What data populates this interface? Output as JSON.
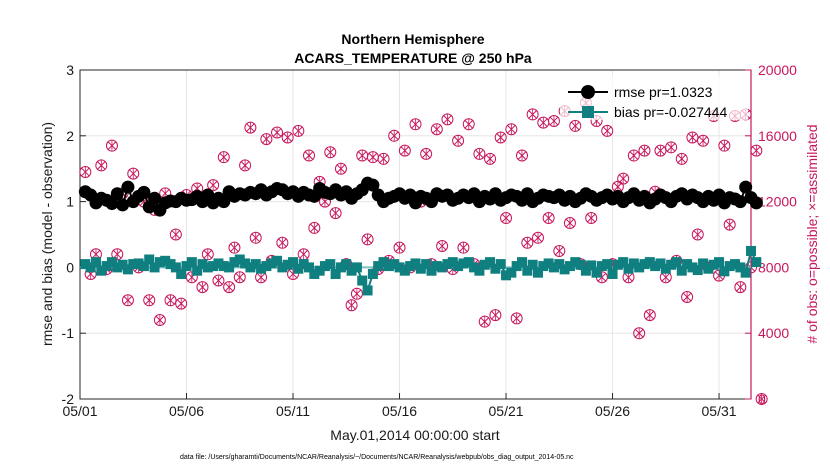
{
  "chart_data": {
    "type": "line",
    "title": "Northern Hemisphere",
    "subtitle": "ACARS_TEMPERATURE @ 250 hPa",
    "xlabel": "May.01,2014 00:00:00 start",
    "ylabel": "rmse and bias (model - observation)",
    "ylabel_right": "# of obs: o=possible; ×=assimilated",
    "footnote": "data file: /Users/gharamti/Documents/NCAR/Reanalysis/~/Documents/NCAR/Reanalysis/webpub/obs_diag_output_2014-05.nc",
    "x_range": [
      0,
      31.5
    ],
    "ylim": [
      -2,
      3
    ],
    "ylim_right": [
      0,
      20000
    ],
    "x_ticks": [
      {
        "x": 0,
        "label": "05/01"
      },
      {
        "x": 5,
        "label": "05/06"
      },
      {
        "x": 10,
        "label": "05/11"
      },
      {
        "x": 15,
        "label": "05/16"
      },
      {
        "x": 20,
        "label": "05/21"
      },
      {
        "x": 25,
        "label": "05/26"
      },
      {
        "x": 30,
        "label": "05/31"
      }
    ],
    "y_ticks": [
      "-2",
      "-1",
      "0",
      "1",
      "2",
      "3"
    ],
    "y_ticks_right": [
      "0",
      "4000",
      "8000",
      "12000",
      "16000",
      "20000"
    ],
    "grid": true,
    "legend_position": "top-right",
    "colors": {
      "rmse": "#000000",
      "bias": "#0f7f80",
      "obs": "#c8175d",
      "zero_line": "#7fbfbf"
    },
    "legend": [
      {
        "series": "rmse",
        "label": "rmse pr=1.0323"
      },
      {
        "series": "bias",
        "label": "bias pr=-0.027444"
      }
    ],
    "x_step_days": 0.25,
    "series": [
      {
        "name": "rmse",
        "axis": "left",
        "marker": "circle",
        "values": [
          1.15,
          1.1,
          0.98,
          1.05,
          1.02,
          0.97,
          1.12,
          0.95,
          1.22,
          1.0,
          1.08,
          1.14,
          0.92,
          1.05,
          0.87,
          0.98,
          1.01,
          1.0,
          1.05,
          1.02,
          1.03,
          1.08,
          1.0,
          1.1,
          0.98,
          1.05,
          1.0,
          1.15,
          1.08,
          1.12,
          1.1,
          1.14,
          1.12,
          1.18,
          1.1,
          1.15,
          1.2,
          1.18,
          1.12,
          1.15,
          1.08,
          1.14,
          1.1,
          1.08,
          1.2,
          1.14,
          1.12,
          1.18,
          1.1,
          1.15,
          1.05,
          1.12,
          1.18,
          1.28,
          1.25,
          1.1,
          1.0,
          1.05,
          1.08,
          1.12,
          1.05,
          1.1,
          0.98,
          1.08,
          1.05,
          1.0,
          1.12,
          1.08,
          1.1,
          1.02,
          1.05,
          1.1,
          1.06,
          1.12,
          1.0,
          1.08,
          1.04,
          1.12,
          1.02,
          1.06,
          1.1,
          1.08,
          1.02,
          1.12,
          1.0,
          1.05,
          1.1,
          1.08,
          1.06,
          1.1,
          1.02,
          1.08,
          1.0,
          1.05,
          1.12,
          1.08,
          1.02,
          1.06,
          1.1,
          1.04,
          1.08,
          1.0,
          1.06,
          1.12,
          1.02,
          1.08,
          0.98,
          1.04,
          1.1,
          1.06,
          1.0,
          1.08,
          1.12,
          1.04,
          1.1,
          1.06,
          1.0,
          1.08,
          1.02,
          1.1,
          0.98,
          1.06,
          1.04,
          1.0,
          1.22,
          1.06,
          0.98
        ]
      },
      {
        "name": "bias",
        "axis": "left",
        "marker": "square",
        "values": [
          0.05,
          0.0,
          0.08,
          -0.05,
          0.02,
          0.08,
          0.0,
          0.04,
          -0.03,
          0.05,
          0.06,
          0.02,
          0.12,
          0.0,
          0.08,
          0.1,
          0.05,
          0.0,
          -0.1,
          0.02,
          0.08,
          -0.05,
          0.05,
          0.0,
          0.02,
          0.06,
          0.02,
          0.0,
          0.08,
          0.12,
          0.06,
          0.0,
          0.05,
          -0.02,
          0.02,
          0.06,
          0.1,
          0.0,
          0.04,
          0.08,
          -0.02,
          0.05,
          0.0,
          -0.1,
          -0.05,
          0.02,
          0.05,
          -0.1,
          0.0,
          0.05,
          -0.05,
          0.0,
          -0.2,
          -0.35,
          -0.1,
          0.02,
          0.08,
          0.02,
          0.05,
          0.0,
          -0.05,
          0.02,
          0.06,
          -0.02,
          0.05,
          -0.05,
          0.02,
          0.0,
          0.05,
          0.08,
          0.02,
          0.06,
          0.08,
          0.0,
          -0.05,
          0.04,
          0.08,
          -0.02,
          0.05,
          -0.12,
          -0.08,
          0.02,
          0.08,
          -0.05,
          0.04,
          -0.08,
          0.02,
          0.06,
          0.0,
          0.05,
          -0.03,
          0.02,
          0.08,
          0.04,
          -0.05,
          0.03,
          -0.08,
          0.02,
          0.05,
          -0.1,
          0.04,
          0.08,
          -0.02,
          0.06,
          0.0,
          0.05,
          0.08,
          0.02,
          0.06,
          -0.02,
          0.04,
          0.08,
          -0.05,
          0.05,
          0.0,
          -0.04,
          0.06,
          -0.02,
          0.04,
          0.08,
          -0.06,
          0.02,
          0.05,
          0.0,
          -0.08,
          0.25,
          0.08
        ]
      },
      {
        "name": "obs_possible",
        "axis": "right",
        "marker": "circle-open",
        "values": [
          13800,
          7600,
          8800,
          14200,
          7900,
          15400,
          8800,
          12500,
          6000,
          13700,
          8000,
          12000,
          6000,
          11500,
          4800,
          12500,
          6000,
          10000,
          5800,
          12400,
          7400,
          12800,
          6800,
          8800,
          13000,
          7200,
          14700,
          6800,
          9200,
          7400,
          14200,
          16500,
          9800,
          7400,
          15800,
          8400,
          16200,
          9500,
          15900,
          7600,
          16300,
          8800,
          14800,
          10400,
          13200,
          12000,
          15000,
          11300,
          14000,
          8200,
          5700,
          6400,
          14800,
          9700,
          14700,
          7900,
          14600,
          8400,
          16000,
          9200,
          15100,
          8000,
          16700,
          12000,
          14900,
          8200,
          16400,
          9300,
          17000,
          7900,
          15700,
          9200,
          16700,
          8200,
          14900,
          4700,
          14600,
          5100,
          15900,
          11000,
          16400,
          4900,
          14800,
          9500,
          17300,
          9800,
          16800,
          11000,
          16900,
          9000,
          17500,
          10700,
          16600,
          8200,
          18000,
          11000,
          16900,
          7400,
          16300,
          8200,
          12900,
          13400,
          7400,
          14800,
          4000,
          15100,
          5100,
          12600,
          15100,
          7400,
          15300,
          8400,
          14600,
          6200,
          15900,
          10000,
          15700,
          8000,
          17200,
          7500,
          15400,
          10600,
          17200,
          6800,
          17300,
          8000,
          15100,
          0
        ]
      }
    ]
  }
}
